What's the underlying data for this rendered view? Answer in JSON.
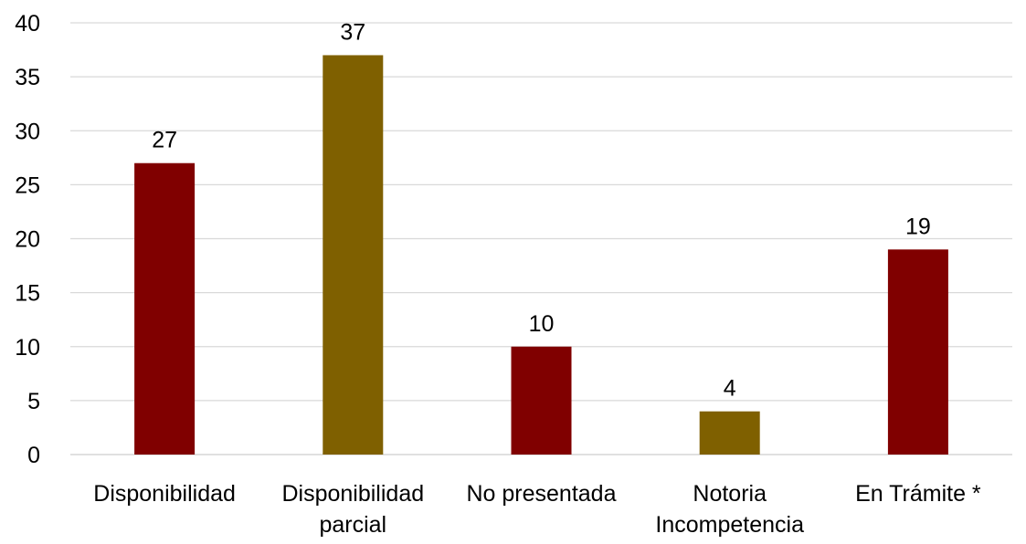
{
  "chart_data": {
    "type": "bar",
    "categories": [
      [
        "Disponibilidad"
      ],
      [
        "Disponibilidad",
        "parcial"
      ],
      [
        "No presentada"
      ],
      [
        "Notoria",
        "Incompetencia"
      ],
      [
        "En Trámite *"
      ]
    ],
    "values": [
      27,
      37,
      10,
      4,
      19
    ],
    "data_labels": [
      "27",
      "37",
      "10",
      "4",
      "19"
    ],
    "bar_colors": [
      "#800000",
      "#7F6000",
      "#800000",
      "#7F6000",
      "#800000"
    ],
    "yticks": [
      "0",
      "5",
      "10",
      "15",
      "20",
      "25",
      "30",
      "35",
      "40"
    ],
    "ylim": [
      0,
      40
    ],
    "grid": true,
    "gridline_color": "#D9D9D9",
    "legend": "none",
    "title": "",
    "xlabel": "",
    "ylabel": ""
  }
}
